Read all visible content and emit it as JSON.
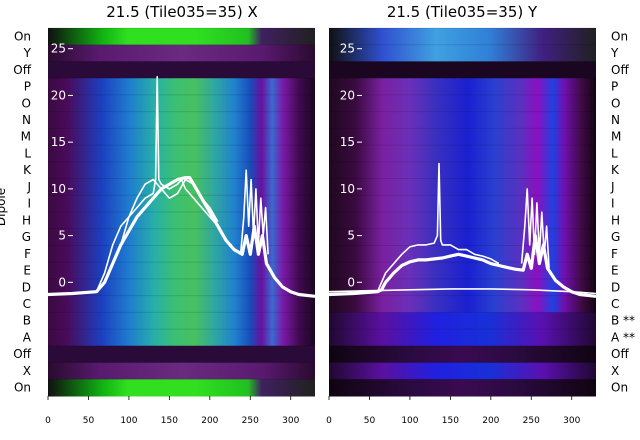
{
  "chart_data": [
    {
      "type": "heatmap",
      "title": "21.5 (Tile035=35) X",
      "ylabel": "Dipole",
      "dipole_labels": [
        "On",
        "Y",
        "Off",
        "P",
        "O",
        "N",
        "M",
        "L",
        "K",
        "J",
        "I",
        "H",
        "G",
        "F",
        "E",
        "D",
        "C",
        "B",
        "A",
        "Off",
        "X",
        "On"
      ],
      "xticks": [
        0,
        50,
        100,
        150,
        200,
        250,
        300
      ],
      "xlim": [
        0,
        330
      ],
      "overlay_yticks": [
        0,
        5,
        10,
        15,
        20,
        25
      ],
      "overlay_ylim": [
        -2,
        27
      ],
      "palette": "black-purple-blue-cyan-green",
      "series": [
        {
          "style": "thick",
          "x": [
            0,
            30,
            60,
            70,
            80,
            90,
            100,
            110,
            120,
            130,
            140,
            150,
            160,
            170,
            175,
            180,
            190,
            200,
            210,
            220,
            230,
            240,
            245,
            250,
            255,
            260,
            265,
            270,
            280,
            290,
            300,
            310,
            330
          ],
          "y": [
            -1.3,
            -1.2,
            -1.0,
            0.0,
            2.0,
            4.0,
            5.5,
            7.0,
            8.0,
            9.0,
            10.0,
            10.5,
            11.0,
            11.2,
            11.2,
            10.5,
            9.0,
            7.5,
            6.0,
            4.5,
            3.5,
            3.0,
            5.0,
            3.0,
            6.0,
            3.0,
            5.0,
            2.0,
            0.5,
            -0.5,
            -1.0,
            -1.3,
            -1.5
          ]
        },
        {
          "style": "thin",
          "x": [
            60,
            70,
            80,
            90,
            100,
            110,
            120,
            130,
            133,
            135,
            137,
            140,
            150,
            160,
            165,
            170,
            180,
            190,
            200,
            210
          ],
          "y": [
            -1.0,
            1.0,
            4.0,
            6.0,
            7.0,
            8.0,
            9.0,
            9.5,
            11.0,
            22.0,
            11.0,
            10.5,
            10.0,
            10.5,
            11.0,
            10.0,
            9.0,
            8.0,
            7.0,
            6.0
          ]
        },
        {
          "style": "thin",
          "x": [
            90,
            100,
            110,
            120,
            130,
            140,
            150,
            160,
            170,
            180,
            190,
            200,
            210
          ],
          "y": [
            4.0,
            7.0,
            9.0,
            10.5,
            11.0,
            10.0,
            9.0,
            9.5,
            11.0,
            10.5,
            9.0,
            8.0,
            6.5
          ]
        },
        {
          "style": "thin",
          "x": [
            238,
            242,
            245,
            248,
            251,
            254,
            257,
            260,
            263,
            266,
            269,
            272
          ],
          "y": [
            3.0,
            7.0,
            12.0,
            6.0,
            11.0,
            5.0,
            10.0,
            4.0,
            9.0,
            5.0,
            8.0,
            3.0
          ]
        }
      ]
    },
    {
      "type": "heatmap",
      "title": "21.5 (Tile035=35) Y",
      "dipole_labels": [
        "On",
        "Y",
        "Off",
        "P",
        "O",
        "N",
        "M",
        "L",
        "K",
        "J",
        "I",
        "H",
        "G",
        "F",
        "E",
        "D",
        "C",
        "B **",
        "A **",
        "Off",
        "X",
        "On"
      ],
      "xticks": [
        0,
        50,
        100,
        150,
        200,
        250,
        300
      ],
      "xlim": [
        0,
        330
      ],
      "overlay_yticks": [
        0,
        5,
        10,
        15,
        20,
        25
      ],
      "overlay_ylim": [
        -2,
        27
      ],
      "palette": "black-purple-blue",
      "series": [
        {
          "style": "thick",
          "x": [
            0,
            30,
            60,
            65,
            70,
            80,
            90,
            100,
            110,
            120,
            130,
            140,
            150,
            160,
            170,
            180,
            190,
            200,
            210,
            220,
            230,
            240,
            245,
            250,
            255,
            260,
            265,
            270,
            280,
            290,
            300,
            310,
            330
          ],
          "y": [
            -1.3,
            -1.2,
            -1.0,
            -0.8,
            0.0,
            1.0,
            1.8,
            2.2,
            2.4,
            2.4,
            2.5,
            2.6,
            2.8,
            3.0,
            2.8,
            2.6,
            2.4,
            2.0,
            1.8,
            1.6,
            1.4,
            1.3,
            3.0,
            1.5,
            5.0,
            2.0,
            4.0,
            1.5,
            0.2,
            -0.5,
            -1.0,
            -1.3,
            -1.5
          ]
        },
        {
          "style": "thin",
          "x": [
            60,
            70,
            80,
            90,
            100,
            110,
            120,
            130,
            134,
            136,
            138,
            140,
            150,
            160,
            170,
            180,
            190,
            200,
            210
          ],
          "y": [
            -1.0,
            1.0,
            2.0,
            3.0,
            3.8,
            4.0,
            4.0,
            4.2,
            5.0,
            12.7,
            4.5,
            4.0,
            4.0,
            3.5,
            3.5,
            3.0,
            2.8,
            2.5,
            2.0
          ]
        },
        {
          "style": "thin",
          "x": [
            0,
            50,
            100,
            150,
            200,
            250,
            300,
            330
          ],
          "y": [
            -1.0,
            -0.9,
            -0.8,
            -0.7,
            -0.7,
            -0.8,
            -1.0,
            -1.2
          ]
        },
        {
          "style": "thin",
          "x": [
            238,
            242,
            245,
            248,
            251,
            254,
            257,
            260,
            263,
            266,
            269,
            272
          ],
          "y": [
            2.0,
            6.0,
            10.0,
            4.0,
            9.0,
            3.0,
            8.5,
            3.0,
            7.5,
            3.0,
            6.0,
            1.5
          ]
        }
      ]
    }
  ]
}
